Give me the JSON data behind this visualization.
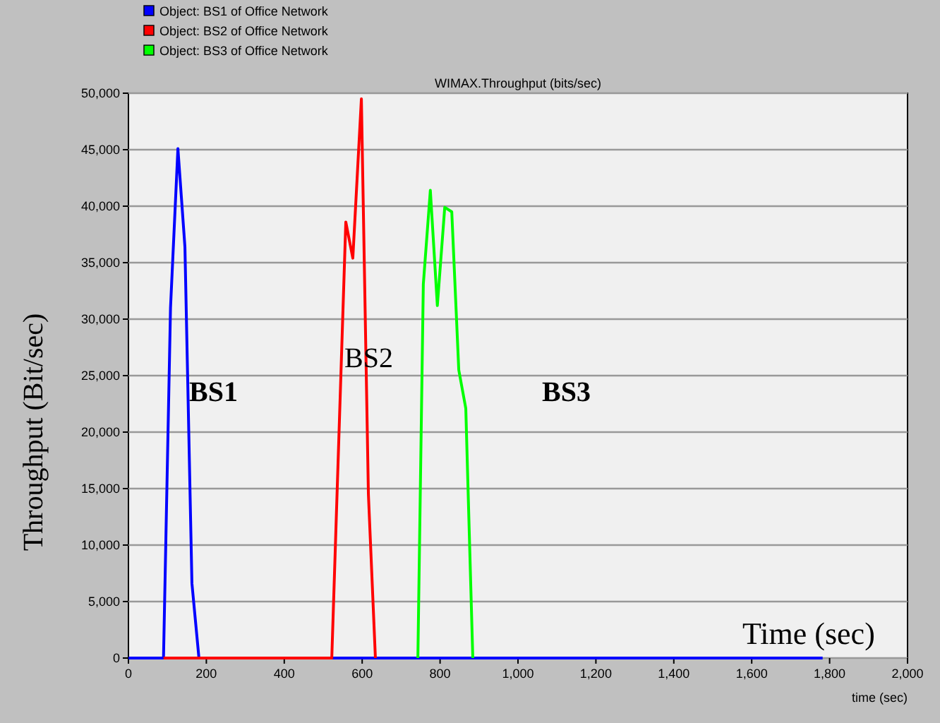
{
  "chart_data": {
    "type": "line",
    "title": "WIMAX.Throughput (bits/sec)",
    "xlabel": "time (sec)",
    "ylabel": "Throughput (Bit/sec)",
    "xlim": [
      0,
      2000
    ],
    "ylim": [
      0,
      50000
    ],
    "xticks": [
      0,
      200,
      400,
      600,
      800,
      {
        "value": 1000,
        "label": "1,000"
      },
      {
        "value": 1200,
        "label": "1,200"
      },
      {
        "value": 1400,
        "label": "1,400"
      },
      {
        "value": 1600,
        "label": "1,600"
      },
      {
        "value": 1800,
        "label": "1,800"
      },
      {
        "value": 2000,
        "label": "2,000"
      }
    ],
    "yticks": [
      0,
      {
        "value": 5000,
        "label": "5,000"
      },
      {
        "value": 10000,
        "label": "10,000"
      },
      {
        "value": 15000,
        "label": "15,000"
      },
      {
        "value": 20000,
        "label": "20,000"
      },
      {
        "value": 25000,
        "label": "25,000"
      },
      {
        "value": 30000,
        "label": "30,000"
      },
      {
        "value": 35000,
        "label": "35,000"
      },
      {
        "value": 40000,
        "label": "40,000"
      },
      {
        "value": 45000,
        "label": "45,000"
      },
      {
        "value": 50000,
        "label": "50,000"
      }
    ],
    "grid": "y",
    "legend": "top left",
    "marker": "none",
    "line_style": "solid",
    "series": [
      {
        "name": "Object: BS1 of Office Network",
        "color": "#0000ff",
        "x": [
          0,
          90,
          108,
          127,
          145,
          163,
          181,
          1782
        ],
        "values": [
          0,
          0,
          31000,
          45100,
          36400,
          6600,
          0,
          0
        ]
      },
      {
        "name": "Object: BS2 of Office Network",
        "color": "#ff0000",
        "x": [
          90,
          522,
          558,
          576,
          598,
          616,
          634
        ],
        "values": [
          0,
          0,
          38600,
          35400,
          49500,
          14500,
          0
        ]
      },
      {
        "name": "Object: BS3 of Office Network",
        "color": "#00ff00",
        "x": [
          743,
          757,
          775,
          793,
          812,
          830,
          848,
          866,
          884
        ],
        "values": [
          0,
          33100,
          41400,
          31200,
          39900,
          39500,
          25500,
          22100,
          0
        ]
      }
    ],
    "annotations": [
      "BS1",
      "BS2",
      "BS3",
      "Time (sec)"
    ]
  }
}
